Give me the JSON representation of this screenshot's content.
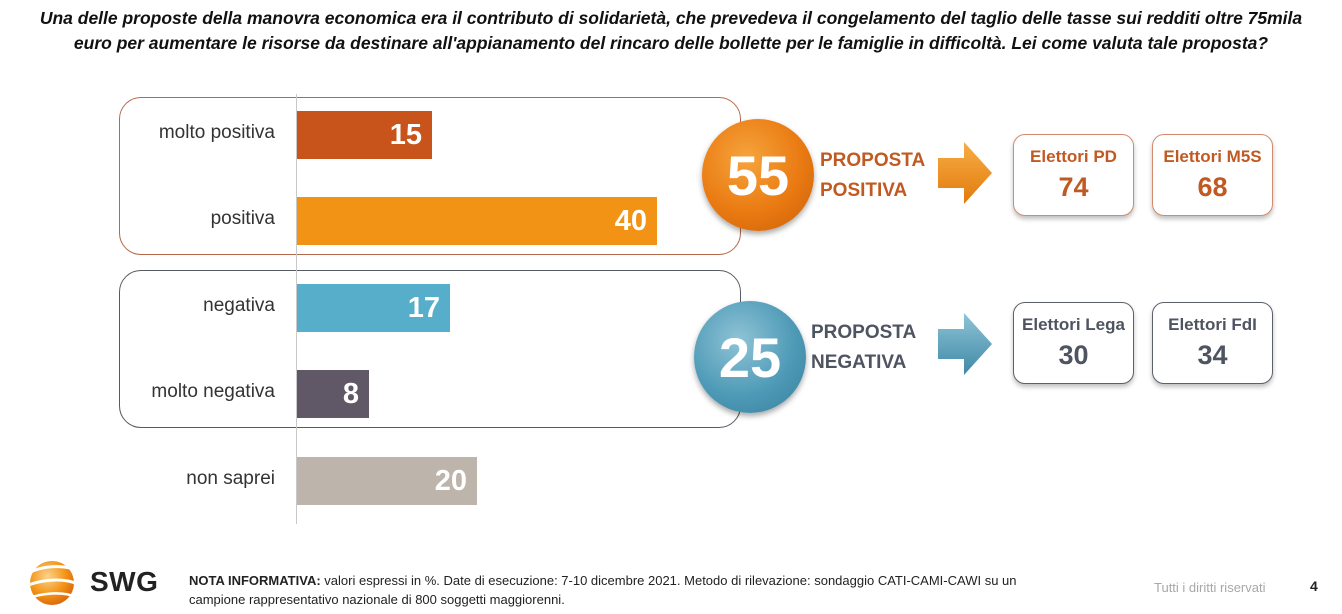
{
  "question": "Una delle proposte della manovra economica era il contributo di solidarietà, che prevedeva il congelamento del taglio delle tasse sui redditi oltre 75mila euro per aumentare le risorse da destinare all'appianamento del rincaro delle bollette per le famiglie in difficoltà. Lei come valuta tale proposta?",
  "chart_data": {
    "type": "bar",
    "orientation": "horizontal",
    "categories": [
      "molto positiva",
      "positiva",
      "negativa",
      "molto negativa",
      "non saprei"
    ],
    "values": [
      15,
      40,
      17,
      8,
      20
    ],
    "colors": [
      "#c8541c",
      "#f39315",
      "#56aecb",
      "#605867",
      "#bdb4ab"
    ],
    "xlim": [
      0,
      50
    ],
    "grid": false
  },
  "summary": {
    "positive": {
      "value": "55",
      "label_line1": "PROPOSTA",
      "label_line2": "POSITIVA"
    },
    "negative": {
      "value": "25",
      "label_line1": "PROPOSTA",
      "label_line2": "NEGATIVA"
    }
  },
  "voters": {
    "positive": [
      {
        "name": "Elettori PD",
        "value": "74"
      },
      {
        "name": "Elettori M5S",
        "value": "68"
      }
    ],
    "negative": [
      {
        "name": "Elettori Lega",
        "value": "30"
      },
      {
        "name": "Elettori FdI",
        "value": "34"
      }
    ]
  },
  "footer": {
    "logo": "SWG",
    "note_label": "NOTA INFORMATIVA:",
    "note_text": " valori espressi in %. Date di esecuzione: 7-10 dicembre 2021. Metodo di rilevazione: sondaggio CATI-CAMI-CAWI su un campione rappresentativo nazionale di 800 soggetti maggiorenni.",
    "rights": "Tutti i diritti riservati",
    "page": "4"
  },
  "colors": {
    "positive_accent": "#c15a22",
    "negative_accent": "#4f5461",
    "arrow_orange": "#f39315",
    "arrow_blue": "#4f9bb7"
  }
}
